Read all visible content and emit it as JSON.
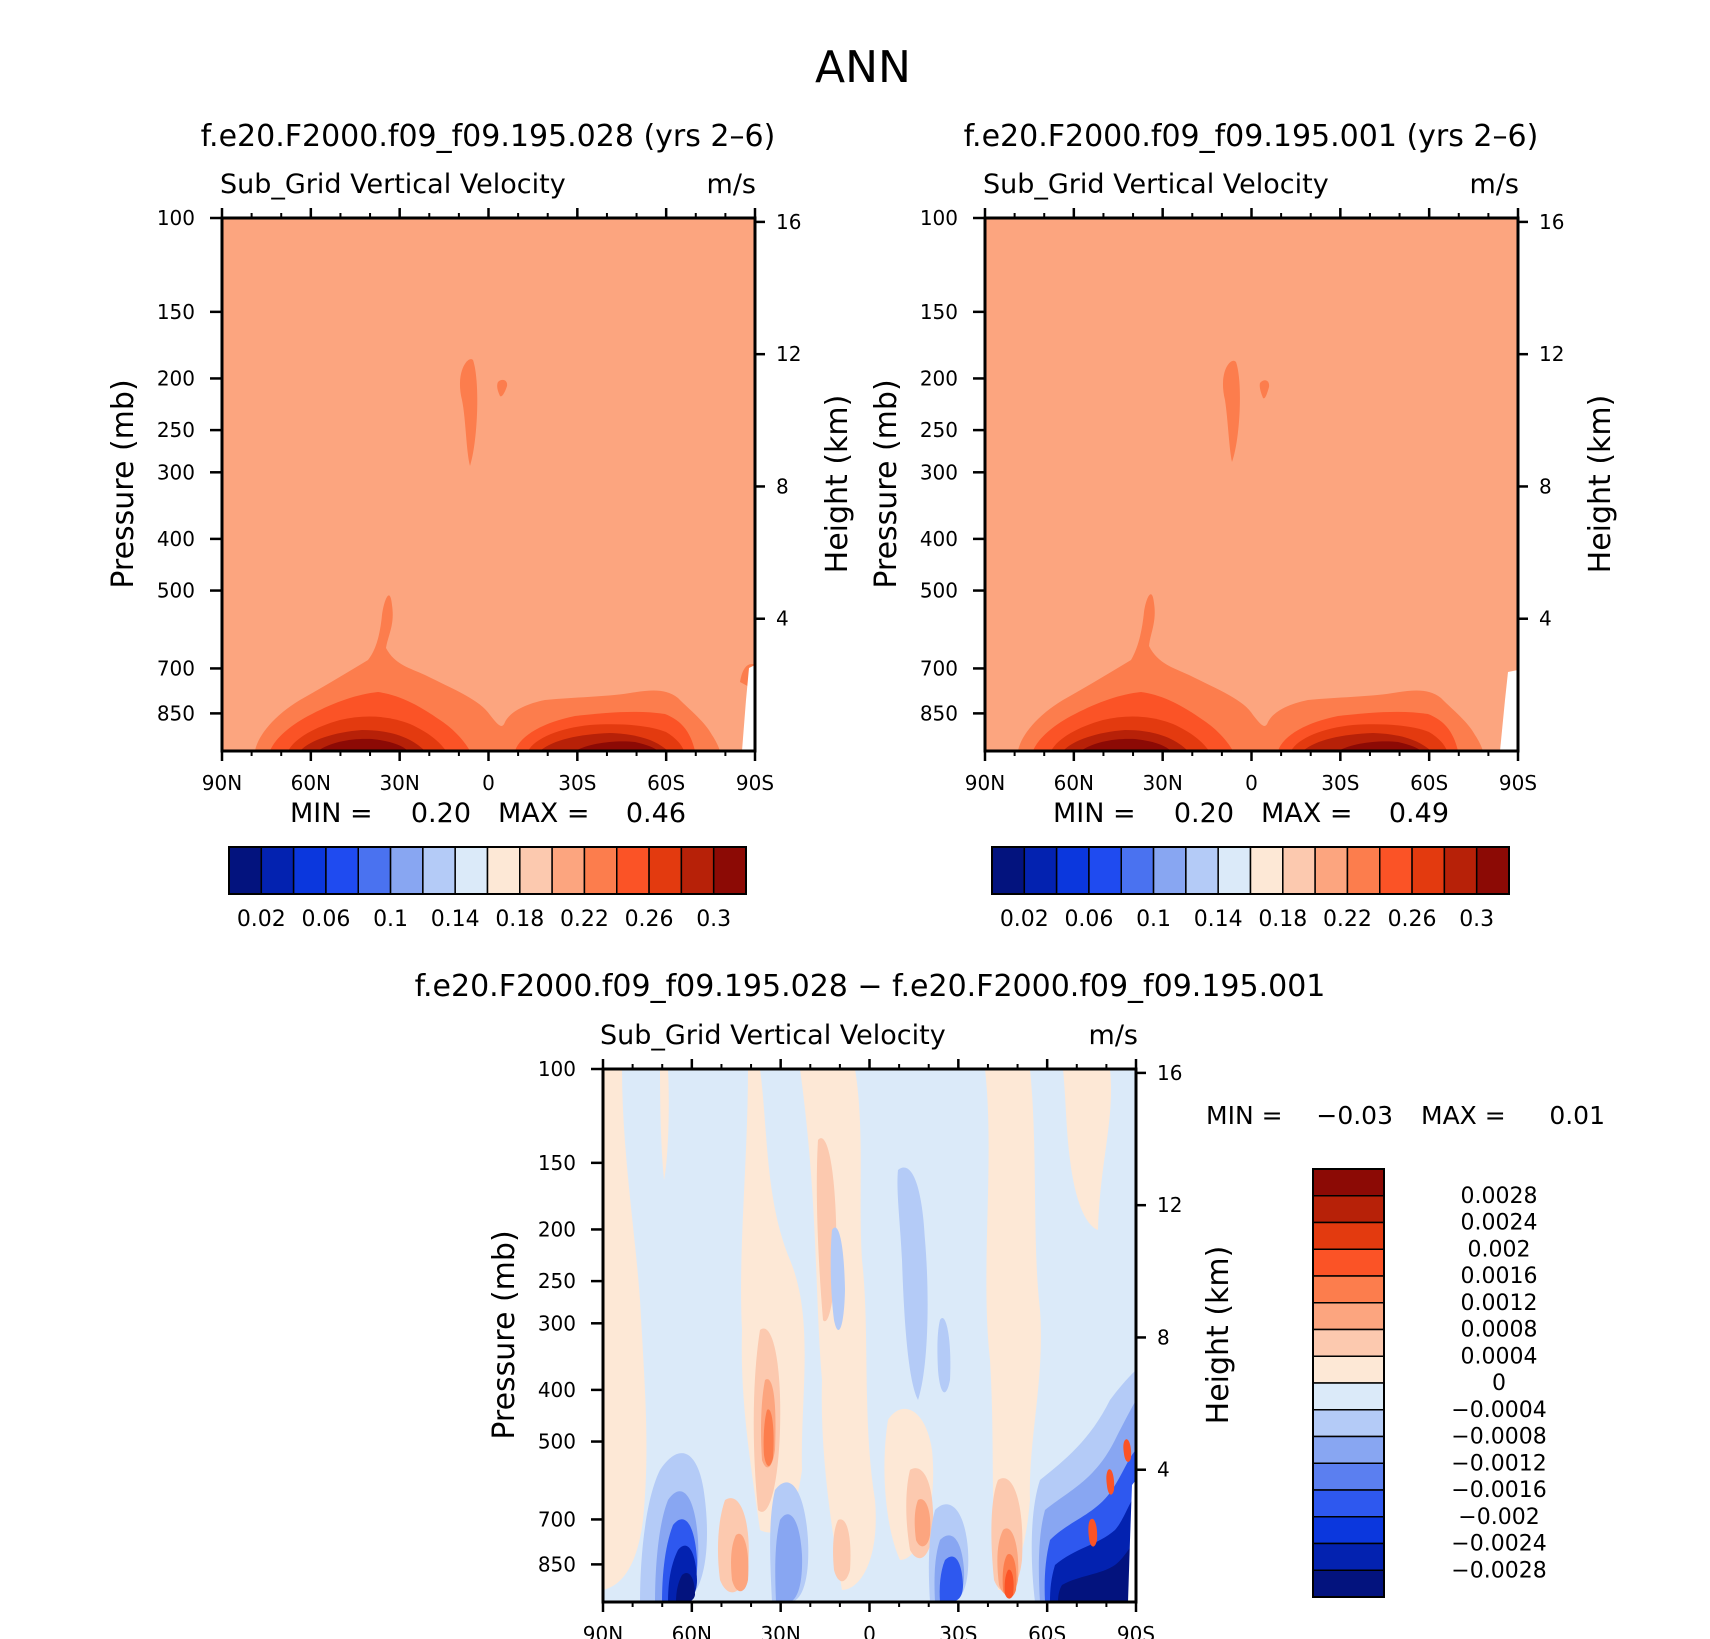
{
  "figure": {
    "title": "ANN",
    "colors": {
      "frame": "#000000",
      "background_field": "#fca57f",
      "positive_scale": [
        "#fde8d6",
        "#fcc9af",
        "#fca57f",
        "#fc7d4d",
        "#fb5326",
        "#e33a0f",
        "#b72108",
        "#8c0a05"
      ],
      "negative_scale": [
        "#dbeaf9",
        "#b4cbf7",
        "#88a6f2",
        "#5b7ff0",
        "#2e58ef",
        "#0b37dd",
        "#0322b0",
        "#03137e"
      ]
    }
  },
  "chart_data": [
    {
      "id": "panel-left",
      "type": "heatmap",
      "title": "f.e20.F2000.f09_f09.195.028 (yrs 2–6)",
      "variable": "Sub_Grid Vertical Velocity",
      "units": "m/s",
      "xlabel": "",
      "ylabel": "Pressure (mb)",
      "y2label": "Height (km)",
      "x_ticks": [
        "90N",
        "60N",
        "30N",
        "0",
        "30S",
        "60S",
        "90S"
      ],
      "x_values": [
        90,
        60,
        30,
        0,
        -30,
        -60,
        -90
      ],
      "y_ticks": [
        100,
        150,
        200,
        250,
        300,
        400,
        500,
        700,
        850
      ],
      "y2_ticks": [
        16,
        12,
        8,
        4
      ],
      "ylim": [
        100,
        1000
      ],
      "min_label": "MIN =",
      "min_value": "0.20",
      "max_label": "MAX =",
      "max_value": "0.46",
      "colorbar": {
        "levels": [
          "0.02",
          "0.06",
          "0.1",
          "0.14",
          "0.18",
          "0.22",
          "0.26",
          "0.3"
        ],
        "colors": [
          "#03137e",
          "#0322b0",
          "#0b37dd",
          "#1f4bf0",
          "#4a72f0",
          "#88a6f2",
          "#b4cbf7",
          "#dbeaf9",
          "#fde8d6",
          "#fcc9af",
          "#fca57f",
          "#fc7d4d",
          "#fb5326",
          "#e33a0f",
          "#b72108",
          "#8c0a05"
        ]
      }
    },
    {
      "id": "panel-right",
      "type": "heatmap",
      "title": "f.e20.F2000.f09_f09.195.001 (yrs 2–6)",
      "variable": "Sub_Grid Vertical Velocity",
      "units": "m/s",
      "xlabel": "",
      "ylabel": "Pressure (mb)",
      "y2label": "Height (km)",
      "x_ticks": [
        "90N",
        "60N",
        "30N",
        "0",
        "30S",
        "60S",
        "90S"
      ],
      "x_values": [
        90,
        60,
        30,
        0,
        -30,
        -60,
        -90
      ],
      "y_ticks": [
        100,
        150,
        200,
        250,
        300,
        400,
        500,
        700,
        850
      ],
      "y2_ticks": [
        16,
        12,
        8,
        4
      ],
      "ylim": [
        100,
        1000
      ],
      "min_label": "MIN =",
      "min_value": "0.20",
      "max_label": "MAX =",
      "max_value": "0.49",
      "colorbar": {
        "levels": [
          "0.02",
          "0.06",
          "0.1",
          "0.14",
          "0.18",
          "0.22",
          "0.26",
          "0.3"
        ],
        "colors": [
          "#03137e",
          "#0322b0",
          "#0b37dd",
          "#1f4bf0",
          "#4a72f0",
          "#88a6f2",
          "#b4cbf7",
          "#dbeaf9",
          "#fde8d6",
          "#fcc9af",
          "#fca57f",
          "#fc7d4d",
          "#fb5326",
          "#e33a0f",
          "#b72108",
          "#8c0a05"
        ]
      }
    },
    {
      "id": "panel-diff",
      "type": "heatmap",
      "title": "f.e20.F2000.f09_f09.195.028 − f.e20.F2000.f09_f09.195.001",
      "variable": "Sub_Grid Vertical Velocity",
      "units": "m/s",
      "xlabel": "",
      "ylabel": "Pressure (mb)",
      "y2label": "Height (km)",
      "x_ticks": [
        "90N",
        "60N",
        "30N",
        "0",
        "30S",
        "60S",
        "90S"
      ],
      "x_values": [
        90,
        60,
        30,
        0,
        -30,
        -60,
        -90
      ],
      "y_ticks": [
        100,
        150,
        200,
        250,
        300,
        400,
        500,
        700,
        850
      ],
      "y2_ticks": [
        16,
        12,
        8,
        4
      ],
      "ylim": [
        100,
        1000
      ],
      "min_label": "MIN =",
      "min_value": "−0.03",
      "max_label": "MAX =",
      "max_value": "0.01",
      "colorbar": {
        "levels": [
          "0.0028",
          "0.0024",
          "0.002",
          "0.0016",
          "0.0012",
          "0.0008",
          "0.0004",
          "0",
          "−0.0004",
          "−0.0008",
          "−0.0012",
          "−0.0016",
          "−0.002",
          "−0.0024",
          "−0.0028"
        ],
        "colors": [
          "#8c0a05",
          "#b72108",
          "#e33a0f",
          "#fb5326",
          "#fc7d4d",
          "#fca57f",
          "#fcc9af",
          "#fde8d6",
          "#dbeaf9",
          "#b4cbf7",
          "#88a6f2",
          "#5b7ff0",
          "#2e58ef",
          "#0b37dd",
          "#0322b0",
          "#03137e"
        ]
      }
    }
  ]
}
